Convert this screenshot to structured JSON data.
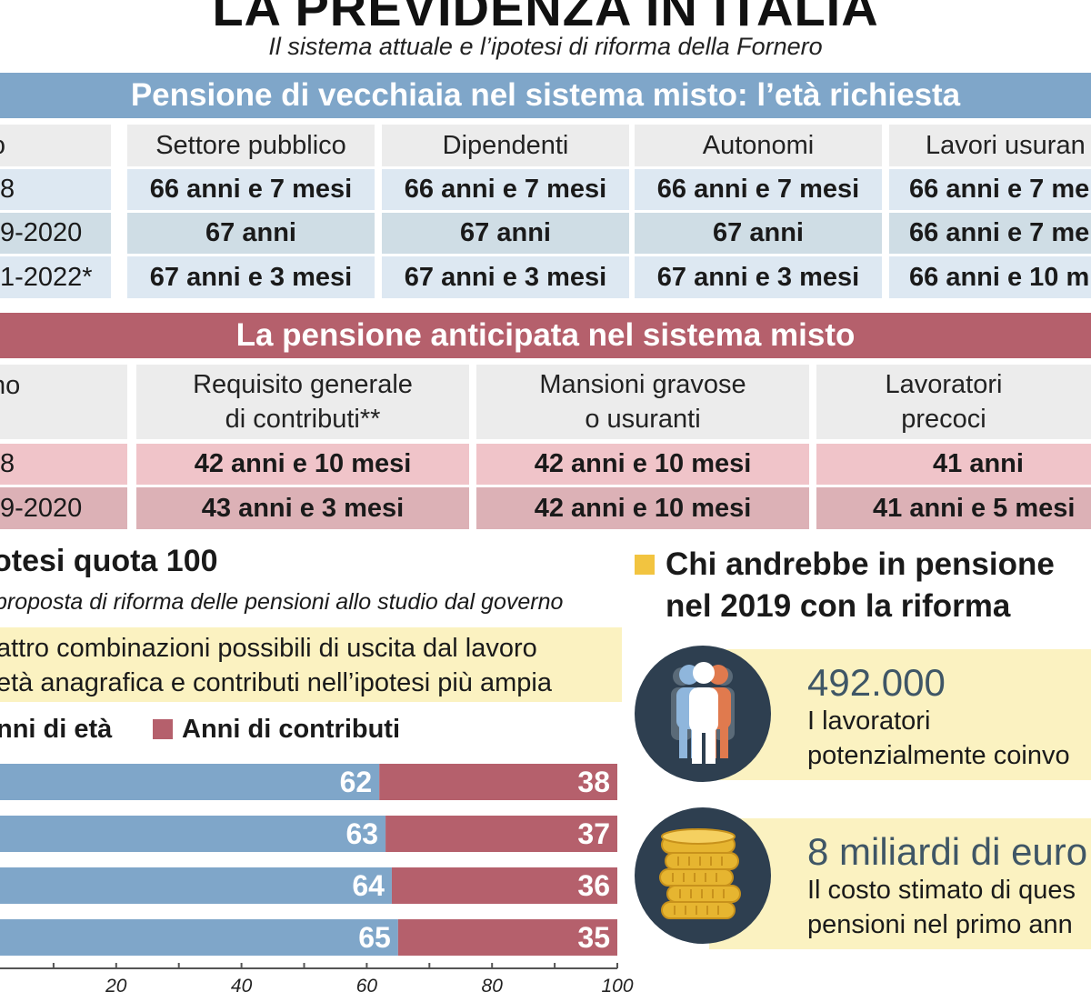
{
  "header": {
    "title": "LA PREVIDENZA IN ITALIA",
    "subtitle": "Il sistema attuale e l’ipotesi di riforma della Fornero"
  },
  "table_vecchiaia": {
    "banner": "Pensione di vecchiaia nel sistema misto: l’età richiesta",
    "headers": [
      "no",
      "Settore pubblico",
      "Dipendenti",
      "Autonomi",
      "Lavori usuran"
    ],
    "rows": [
      [
        "8",
        "66 anni e 7 mesi",
        "66 anni e 7 mesi",
        "66 anni e 7 mesi",
        "66 anni e 7 me"
      ],
      [
        "9-2020",
        "67 anni",
        "67 anni",
        "67 anni",
        "66 anni e 7 me"
      ],
      [
        "1-2022*",
        "67 anni e 3 mesi",
        "67 anni e 3 mesi",
        "67 anni e 3 mesi",
        "66 anni e 10 m"
      ]
    ],
    "colors": {
      "banner": "#7fa6c9",
      "row_light": "#dde8f2",
      "row_mid": "#cfdde5"
    }
  },
  "table_anticipata": {
    "banner": "La pensione anticipata nel sistema misto",
    "headers": [
      [
        "no"
      ],
      [
        "Requisito generale",
        "di contributi**"
      ],
      [
        "Mansioni gravose",
        "o usuranti"
      ],
      [
        "Lavoratori",
        "precoci"
      ]
    ],
    "rows": [
      [
        "8",
        "42 anni e 10 mesi",
        "42 anni e 10 mesi",
        "41 anni"
      ],
      [
        "9-2020",
        "43 anni e 3 mesi",
        "42 anni e 10 mesi",
        "41 anni e 5 mesi"
      ]
    ],
    "colors": {
      "banner": "#b5606c",
      "row_light": "#f0c4c9",
      "row_mid": "#dcb1b6"
    }
  },
  "quota100": {
    "title": "otesi quota 100",
    "subtitle": "proposta di riforma delle pensioni allo studio dal governo",
    "box_lines": [
      "attro combinazioni possibili di uscita dal lavoro",
      "età anagrafica e contributi nell’ipotesi più ampia"
    ],
    "legend_age": "nni di età",
    "legend_contrib": "Anni di contributi"
  },
  "chart_data": {
    "type": "bar",
    "orientation": "horizontal",
    "stacked": true,
    "categories": [
      "",
      "",
      "",
      ""
    ],
    "series": [
      {
        "name": "Anni di età",
        "values": [
          62,
          63,
          64,
          65
        ],
        "color": "#7fa6c9"
      },
      {
        "name": "Anni di contributi",
        "values": [
          38,
          37,
          36,
          35
        ],
        "color": "#b5606c"
      }
    ],
    "x_ticks": [
      20,
      40,
      60,
      80,
      100
    ],
    "xlim": [
      0,
      100
    ]
  },
  "right": {
    "heading_lines": [
      "Chi andrebbe in pensione",
      "nel 2019 con la riforma"
    ],
    "card1": {
      "value": "492.000",
      "lines": [
        "I lavoratori",
        "potenzialmente coinvo"
      ],
      "icon": "people-icon"
    },
    "card2": {
      "value": "8 miliardi di euro",
      "lines": [
        "Il costo stimato di ques",
        "pensioni nel primo ann"
      ],
      "icon": "coins-icon"
    },
    "accent": "#f2c440"
  }
}
